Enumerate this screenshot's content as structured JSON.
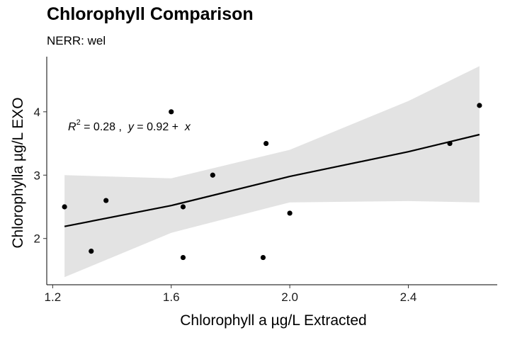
{
  "chart_data": {
    "type": "scatter",
    "title": "Chlorophyll Comparison",
    "subtitle": "NERR: wel",
    "xlabel": "Chlorophyll a µg/L Extracted",
    "ylabel": "Chlorophylla µg/L EXO",
    "xlim": [
      1.18,
      2.7
    ],
    "ylim": [
      1.27,
      4.87
    ],
    "xticks": [
      1.2,
      1.6,
      2.0,
      2.4
    ],
    "xtick_labels": [
      "1.2",
      "1.6",
      "2.0",
      "2.4"
    ],
    "yticks": [
      2,
      3,
      4
    ],
    "ytick_labels": [
      "2",
      "3",
      "4"
    ],
    "grid": false,
    "points": [
      {
        "x": 1.24,
        "y": 2.5
      },
      {
        "x": 1.33,
        "y": 1.8
      },
      {
        "x": 1.38,
        "y": 2.6
      },
      {
        "x": 1.6,
        "y": 4.0
      },
      {
        "x": 1.64,
        "y": 2.5
      },
      {
        "x": 1.64,
        "y": 1.7
      },
      {
        "x": 1.74,
        "y": 3.0
      },
      {
        "x": 1.91,
        "y": 1.7
      },
      {
        "x": 1.92,
        "y": 3.5
      },
      {
        "x": 2.0,
        "y": 2.4
      },
      {
        "x": 2.54,
        "y": 3.5
      },
      {
        "x": 2.64,
        "y": 4.1
      }
    ],
    "fit": {
      "x": [
        1.24,
        1.6,
        2.0,
        2.4,
        2.64
      ],
      "y": [
        2.19,
        2.52,
        2.98,
        3.37,
        3.64
      ],
      "ci_lower": [
        1.39,
        2.09,
        2.57,
        2.59,
        2.57
      ],
      "ci_upper": [
        3.0,
        2.95,
        3.4,
        4.17,
        4.72
      ]
    },
    "annotation": {
      "r2_symbol": "R",
      "r2_exp": "2",
      "r2_text": " = 0.28 ,  ",
      "y_symbol": "y",
      "eq_text": " = 0.92 +  ",
      "x_symbol": "x"
    },
    "colors": {
      "points": "#000000",
      "line": "#000000",
      "band": "#e3e3e3"
    }
  }
}
